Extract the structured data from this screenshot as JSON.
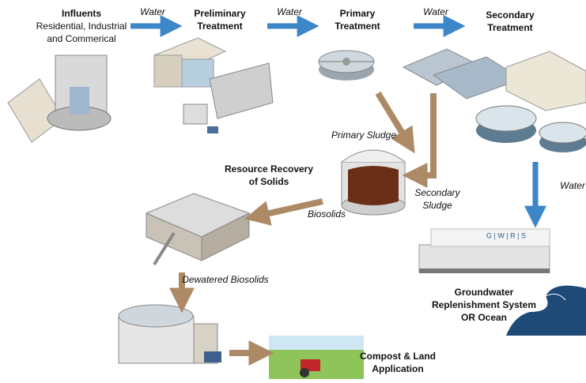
{
  "stages": [
    {
      "title": [
        "Influents"
      ],
      "subtitle": [
        "Residential, Industrial",
        "and Commerical"
      ]
    },
    {
      "title": [
        "Preliminary",
        "Treatment"
      ]
    },
    {
      "title": [
        "Primary",
        "Treatment"
      ]
    },
    {
      "title": [
        "Secondary",
        "Treatment"
      ]
    },
    {
      "title": [
        "Resource Recovery",
        "of Solids"
      ]
    },
    {
      "title": [
        "Groundwater",
        "Replenishment System",
        "OR Ocean"
      ]
    },
    {
      "title": [
        "Compost & Land",
        "Application"
      ]
    }
  ],
  "flows": [
    {
      "label": [
        "Water"
      ]
    },
    {
      "label": [
        "Water"
      ]
    },
    {
      "label": [
        "Water"
      ]
    },
    {
      "label": [
        "Water"
      ]
    },
    {
      "label": [
        "Primary Sludge"
      ]
    },
    {
      "label": [
        "Secondary",
        "Sludge"
      ]
    },
    {
      "label": [
        "Biosolids"
      ]
    },
    {
      "label": [
        "Dewatered Biosolids"
      ]
    }
  ],
  "logo": "G | W | R | S"
}
